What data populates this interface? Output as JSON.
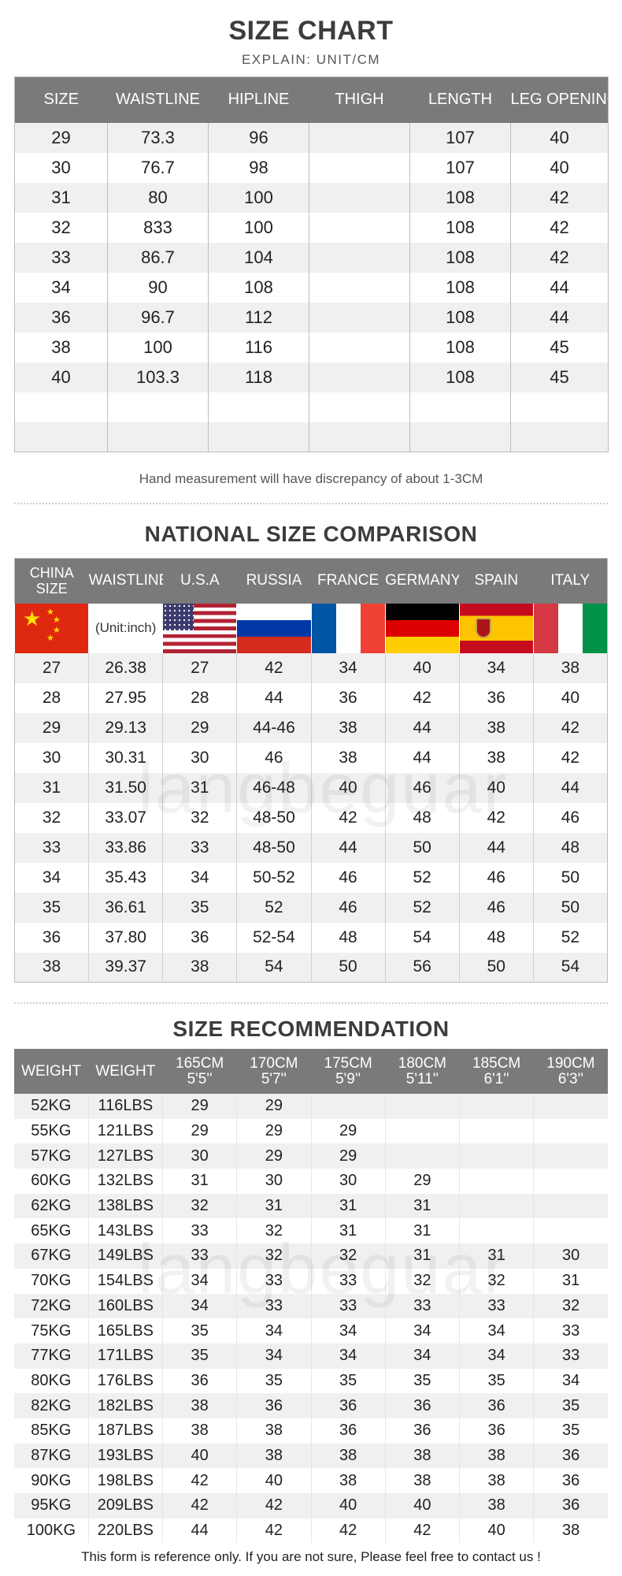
{
  "size_chart": {
    "title": "SIZE CHART",
    "subtitle": "EXPLAIN: UNIT/CM",
    "headers": [
      "SIZE",
      "WAISTLINE",
      "HIPLINE",
      "THIGH",
      "LENGTH",
      "LEG OPENING"
    ],
    "rows": [
      [
        "29",
        "73.3",
        "96",
        "",
        "107",
        "40"
      ],
      [
        "30",
        "76.7",
        "98",
        "",
        "107",
        "40"
      ],
      [
        "31",
        "80",
        "100",
        "",
        "108",
        "42"
      ],
      [
        "32",
        "833",
        "100",
        "",
        "108",
        "42"
      ],
      [
        "33",
        "86.7",
        "104",
        "",
        "108",
        "42"
      ],
      [
        "34",
        "90",
        "108",
        "",
        "108",
        "44"
      ],
      [
        "36",
        "96.7",
        "112",
        "",
        "108",
        "44"
      ],
      [
        "38",
        "100",
        "116",
        "",
        "108",
        "45"
      ],
      [
        "40",
        "103.3",
        "118",
        "",
        "108",
        "45"
      ],
      [
        "",
        "",
        "",
        "",
        "",
        ""
      ],
      [
        "",
        "",
        "",
        "",
        "",
        ""
      ]
    ],
    "note": "Hand measurement will have discrepancy of about 1-3CM"
  },
  "national": {
    "title": "NATIONAL SIZE COMPARISON",
    "headers": [
      "CHINA SIZE",
      "WAISTLINE",
      "U.S.A",
      "RUSSIA",
      "FRANCE",
      "GERMANY",
      "SPAIN",
      "ITALY"
    ],
    "flags": [
      "china-flag",
      "unit",
      "usa-flag",
      "russia-flag",
      "france-flag",
      "germany-flag",
      "spain-flag",
      "italy-flag"
    ],
    "unit_label": "(Unit:inch)",
    "rows": [
      [
        "27",
        "26.38",
        "27",
        "42",
        "34",
        "40",
        "34",
        "38"
      ],
      [
        "28",
        "27.95",
        "28",
        "44",
        "36",
        "42",
        "36",
        "40"
      ],
      [
        "29",
        "29.13",
        "29",
        "44-46",
        "38",
        "44",
        "38",
        "42"
      ],
      [
        "30",
        "30.31",
        "30",
        "46",
        "38",
        "44",
        "38",
        "42"
      ],
      [
        "31",
        "31.50",
        "31",
        "46-48",
        "40",
        "46",
        "40",
        "44"
      ],
      [
        "32",
        "33.07",
        "32",
        "48-50",
        "42",
        "48",
        "42",
        "46"
      ],
      [
        "33",
        "33.86",
        "33",
        "48-50",
        "44",
        "50",
        "44",
        "48"
      ],
      [
        "34",
        "35.43",
        "34",
        "50-52",
        "46",
        "52",
        "46",
        "50"
      ],
      [
        "35",
        "36.61",
        "35",
        "52",
        "46",
        "52",
        "46",
        "50"
      ],
      [
        "36",
        "37.80",
        "36",
        "52-54",
        "48",
        "54",
        "48",
        "52"
      ],
      [
        "38",
        "39.37",
        "38",
        "54",
        "50",
        "56",
        "50",
        "54"
      ]
    ]
  },
  "recommendation": {
    "title": "SIZE RECOMMENDATION",
    "headers": [
      "WEIGHT",
      "WEIGHT",
      "165CM\n5'5''",
      "170CM\n5'7''",
      "175CM\n5'9''",
      "180CM\n5'11''",
      "185CM\n6'1''",
      "190CM\n6'3''"
    ],
    "rows": [
      [
        "52KG",
        "116LBS",
        "29",
        "29",
        "",
        "",
        "",
        ""
      ],
      [
        "55KG",
        "121LBS",
        "29",
        "29",
        "29",
        "",
        "",
        ""
      ],
      [
        "57KG",
        "127LBS",
        "30",
        "29",
        "29",
        "",
        "",
        ""
      ],
      [
        "60KG",
        "132LBS",
        "31",
        "30",
        "30",
        "29",
        "",
        ""
      ],
      [
        "62KG",
        "138LBS",
        "32",
        "31",
        "31",
        "31",
        "",
        ""
      ],
      [
        "65KG",
        "143LBS",
        "33",
        "32",
        "31",
        "31",
        "",
        ""
      ],
      [
        "67KG",
        "149LBS",
        "33",
        "32",
        "32",
        "31",
        "31",
        "30"
      ],
      [
        "70KG",
        "154LBS",
        "34",
        "33",
        "33",
        "32",
        "32",
        "31"
      ],
      [
        "72KG",
        "160LBS",
        "34",
        "33",
        "33",
        "33",
        "33",
        "32"
      ],
      [
        "75KG",
        "165LBS",
        "35",
        "34",
        "34",
        "34",
        "34",
        "33"
      ],
      [
        "77KG",
        "171LBS",
        "35",
        "34",
        "34",
        "34",
        "34",
        "33"
      ],
      [
        "80KG",
        "176LBS",
        "36",
        "35",
        "35",
        "35",
        "35",
        "34"
      ],
      [
        "82KG",
        "182LBS",
        "38",
        "36",
        "36",
        "36",
        "36",
        "35"
      ],
      [
        "85KG",
        "187LBS",
        "38",
        "38",
        "36",
        "36",
        "36",
        "35"
      ],
      [
        "87KG",
        "193LBS",
        "40",
        "38",
        "38",
        "38",
        "38",
        "36"
      ],
      [
        "90KG",
        "198LBS",
        "42",
        "40",
        "38",
        "38",
        "38",
        "36"
      ],
      [
        "95KG",
        "209LBS",
        "42",
        "42",
        "40",
        "40",
        "38",
        "36"
      ],
      [
        "100KG",
        "220LBS",
        "44",
        "42",
        "42",
        "42",
        "40",
        "38"
      ]
    ]
  },
  "footer": "This form is reference only. If you are not sure, Please feel free to contact us !",
  "watermark": "langbeguar"
}
